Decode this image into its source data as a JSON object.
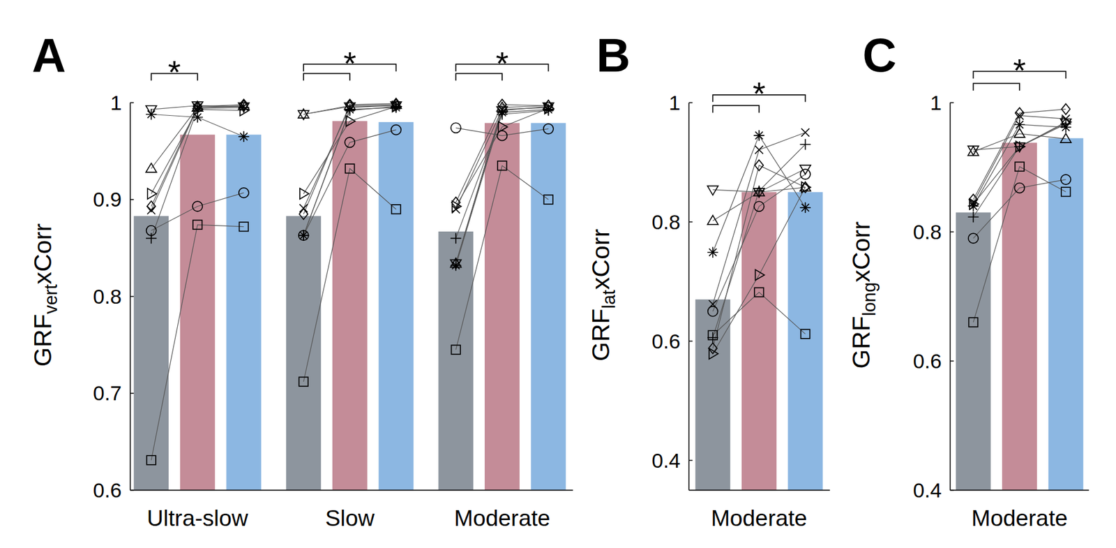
{
  "chart_data": [
    {
      "panel": "A",
      "type": "bar",
      "ylabel": "GRF",
      "ylabel_sub": "vert",
      "ylabel_suffix": "xCorr",
      "categories": [
        "Ultra-slow",
        "Slow",
        "Moderate"
      ],
      "ylim": [
        0.6,
        1
      ],
      "yticks": [
        0.6,
        0.7,
        0.8,
        0.9,
        1
      ],
      "series": [
        {
          "color": "#8d959e",
          "values": [
            0.883,
            0.883,
            0.867
          ]
        },
        {
          "color": "#c48c98",
          "values": [
            0.967,
            0.981,
            0.979
          ]
        },
        {
          "color": "#8cb7e2",
          "values": [
            0.967,
            0.98,
            0.979
          ]
        }
      ],
      "subjects": [
        {
          "marker": "triangle-down",
          "values": [
            [
              0.993,
              0.997,
              0.996
            ],
            [
              0.988,
              0.996,
              0.997
            ],
            [
              0.834,
              0.992,
              0.996
            ]
          ]
        },
        {
          "marker": "asterisk",
          "values": [
            [
              0.988,
              0.985,
              0.965
            ],
            [
              0.863,
              0.993,
              0.995
            ],
            [
              0.832,
              0.99,
              0.993
            ]
          ]
        },
        {
          "marker": "triangle-up",
          "values": [
            [
              0.932,
              0.995,
              0.997
            ],
            [
              0.988,
              0.997,
              0.998
            ],
            [
              0.834,
              0.995,
              0.997
            ]
          ]
        },
        {
          "marker": "triangle-right",
          "values": [
            [
              0.906,
              0.993,
              0.992
            ],
            [
              0.906,
              0.981,
              0.996
            ],
            [
              0.893,
              0.975,
              0.994
            ]
          ]
        },
        {
          "marker": "diamond",
          "values": [
            [
              0.893,
              0.996,
              0.998
            ],
            [
              0.885,
              0.998,
              0.999
            ],
            [
              0.897,
              0.998,
              0.997
            ]
          ]
        },
        {
          "marker": "circle",
          "values": [
            [
              0.868,
              0.893,
              0.907
            ],
            [
              0.863,
              0.959,
              0.972
            ],
            [
              0.974,
              0.966,
              0.973
            ]
          ]
        },
        {
          "marker": "plus",
          "values": [
            [
              0.86,
              0.994,
              0.995
            ],
            [
              0.863,
              0.992,
              0.996
            ],
            [
              0.86,
              0.988,
              0.992
            ]
          ]
        },
        {
          "marker": "square",
          "values": [
            [
              0.631,
              0.874,
              0.872
            ],
            [
              0.712,
              0.932,
              0.89
            ],
            [
              0.745,
              0.935,
              0.9
            ]
          ]
        },
        {
          "marker": "x",
          "values": [
            [
              0.889,
              0.995,
              0.996
            ],
            [
              0.891,
              0.995,
              0.997
            ],
            [
              0.89,
              0.993,
              0.995
            ]
          ]
        }
      ],
      "significance": [
        {
          "pairs": [
            [
              0,
              1
            ]
          ],
          "label": "*"
        },
        {
          "pairs": [
            [
              0,
              1
            ],
            [
              0,
              2
            ]
          ],
          "label": "*"
        },
        {
          "pairs": [
            [
              0,
              1
            ],
            [
              0,
              2
            ]
          ],
          "label": "*"
        }
      ]
    },
    {
      "panel": "B",
      "type": "bar",
      "ylabel": "GRF",
      "ylabel_sub": "lat",
      "ylabel_suffix": "xCorr",
      "categories": [
        "Moderate"
      ],
      "ylim": [
        0.35,
        1
      ],
      "yticks": [
        0.4,
        0.6,
        0.8,
        1
      ],
      "series": [
        {
          "color": "#8d959e",
          "values": [
            0.67
          ]
        },
        {
          "color": "#c48c98",
          "values": [
            0.85
          ]
        },
        {
          "color": "#8cb7e2",
          "values": [
            0.85
          ]
        }
      ],
      "subjects": [
        {
          "marker": "triangle-down",
          "values": [
            [
              0.854,
              0.85,
              0.889
            ]
          ]
        },
        {
          "marker": "asterisk",
          "values": [
            [
              0.749,
              0.945,
              0.824
            ]
          ]
        },
        {
          "marker": "triangle-up",
          "values": [
            [
              0.802,
              0.85,
              0.858
            ]
          ]
        },
        {
          "marker": "triangle-right",
          "values": [
            [
              0.579,
              0.711,
              0.858
            ]
          ]
        },
        {
          "marker": "diamond",
          "values": [
            [
              0.588,
              0.895,
              0.858
            ]
          ]
        },
        {
          "marker": "circle",
          "values": [
            [
              0.65,
              0.826,
              0.88
            ]
          ]
        },
        {
          "marker": "plus",
          "values": [
            [
              0.606,
              0.852,
              0.93
            ]
          ]
        },
        {
          "marker": "square",
          "values": [
            [
              0.61,
              0.682,
              0.612
            ]
          ]
        },
        {
          "marker": "x",
          "values": [
            [
              0.662,
              0.921,
              0.95
            ]
          ]
        }
      ],
      "significance": [
        {
          "pairs": [
            [
              0,
              1
            ],
            [
              0,
              2
            ]
          ],
          "label": "*"
        }
      ]
    },
    {
      "panel": "C",
      "type": "bar",
      "ylabel": "GRF",
      "ylabel_sub": "long",
      "ylabel_suffix": "xCorr",
      "categories": [
        "Moderate"
      ],
      "ylim": [
        0.4,
        1
      ],
      "yticks": [
        0.4,
        0.6,
        0.8,
        1
      ],
      "series": [
        {
          "color": "#8d959e",
          "values": [
            0.83
          ]
        },
        {
          "color": "#c48c98",
          "values": [
            0.938
          ]
        },
        {
          "color": "#8cb7e2",
          "values": [
            0.945
          ]
        }
      ],
      "subjects": [
        {
          "marker": "triangle-down",
          "values": [
            [
              0.927,
              0.932,
              0.969
            ]
          ]
        },
        {
          "marker": "asterisk",
          "values": [
            [
              0.84,
              0.966,
              0.962
            ]
          ]
        },
        {
          "marker": "triangle-up",
          "values": [
            [
              0.924,
              0.952,
              0.944
            ]
          ]
        },
        {
          "marker": "triangle-right",
          "values": [
            [
              0.843,
              0.932,
              0.97
            ]
          ]
        },
        {
          "marker": "diamond",
          "values": [
            [
              0.85,
              0.984,
              0.99
            ]
          ]
        },
        {
          "marker": "circle",
          "values": [
            [
              0.79,
              0.868,
              0.881
            ]
          ]
        },
        {
          "marker": "plus",
          "values": [
            [
              0.823,
              0.932,
              0.967
            ]
          ]
        },
        {
          "marker": "square",
          "values": [
            [
              0.66,
              0.901,
              0.862
            ]
          ]
        },
        {
          "marker": "x",
          "values": [
            [
              0.845,
              0.98,
              0.975
            ]
          ]
        }
      ],
      "significance": [
        {
          "pairs": [
            [
              0,
              1
            ],
            [
              0,
              2
            ]
          ],
          "label": "*"
        }
      ]
    }
  ]
}
